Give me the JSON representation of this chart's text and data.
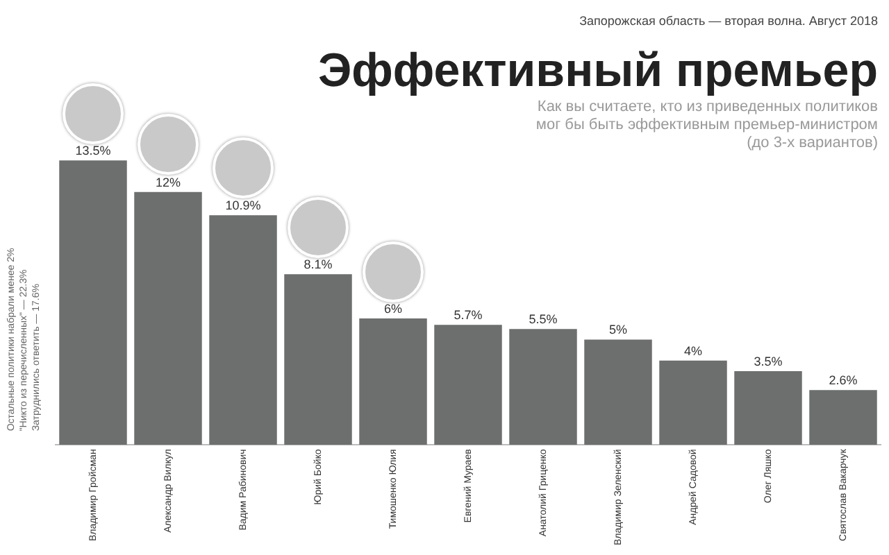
{
  "chart_data": {
    "type": "bar",
    "title": "Эффективный премьер",
    "subtitle": "Как вы считаете, кто из приведенных политиков мог бы быть эффективным премьер-министром (до 3-х вариантов)",
    "annotations": [
      "Запорожская область — вторая волна. Август 2018",
      "Остальные политики набрали менее 2%",
      "\"Никто из перечисленных\" — 22.3%",
      "Затруднились ответить — 17.6%"
    ],
    "categories": [
      "Владимир Гройсман",
      "Александр Вилкул",
      "Вадим Рабинович",
      "Юрий Бойко",
      "Тимошенко Юлия",
      "Евгений Мураев",
      "Анатолий Гриценко",
      "Владимир Зеленский",
      "Андрей Садовой",
      "Олег Ляшко",
      "Святослав Вакарчук"
    ],
    "values": [
      13.5,
      12,
      10.9,
      8.1,
      6,
      5.7,
      5.5,
      5,
      4,
      3.5,
      2.6
    ],
    "value_labels": [
      "13.5%",
      "12%",
      "10.9%",
      "8.1%",
      "6%",
      "5.7%",
      "5.5%",
      "5%",
      "4%",
      "3.5%",
      "2.6%"
    ],
    "color": "#6d6f6e",
    "grid": false,
    "legend": false
  }
}
